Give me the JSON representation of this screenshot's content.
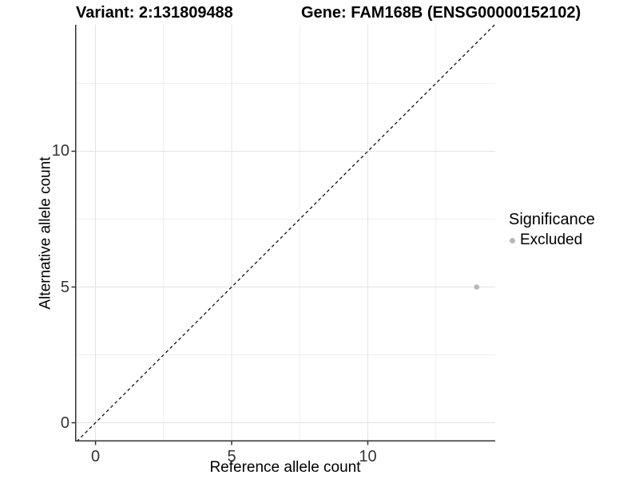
{
  "header": {
    "variant_title": "Variant: 2:131809488",
    "gene_title": "Gene: FAM168B (ENSG00000152102)"
  },
  "axes": {
    "x": {
      "label": "Reference allele count",
      "tick_labels": [
        "0",
        "5",
        "10"
      ]
    },
    "y": {
      "label": "Alternative allele count",
      "tick_labels": [
        "0",
        "5",
        "10"
      ]
    }
  },
  "legend": {
    "title": "Significance",
    "items": [
      {
        "label": "Excluded",
        "color": "#b8b8b8"
      }
    ]
  },
  "chart_data": {
    "type": "scatter",
    "title": "Variant: 2:131809488",
    "subtitle": "Gene: FAM168B (ENSG00000152102)",
    "xlabel": "Reference allele count",
    "ylabel": "Alternative allele count",
    "xlim": [
      -0.75,
      14.68
    ],
    "ylim": [
      -0.69,
      14.66
    ],
    "x_ticks": [
      0,
      5,
      10
    ],
    "y_ticks": [
      0,
      5,
      10
    ],
    "x_minor_ticks": [
      2.5,
      7.5,
      12.5
    ],
    "y_minor_ticks": [
      2.5,
      7.5,
      12.5
    ],
    "grid": "major and minor gridlines, light gray on white, no top/right border",
    "legend_position": "right-middle",
    "series": [
      {
        "name": "Excluded",
        "marker": "circle",
        "color": "#b8b8b8",
        "points": [
          [
            14,
            5
          ]
        ]
      }
    ],
    "reference_line": {
      "kind": "identity y=x",
      "style": "dashed",
      "color": "#000000"
    }
  },
  "colors": {
    "background": "#ffffff",
    "axis_line": "#333333",
    "tick_text": "#333333",
    "grid_major": "#e3e3e3",
    "grid_minor": "#efefef",
    "point": "#b8b8b8",
    "reference_line": "#000000"
  }
}
